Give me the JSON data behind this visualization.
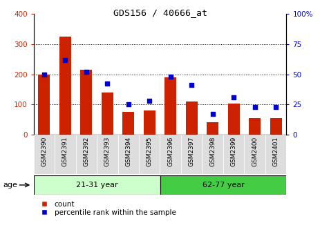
{
  "title": "GDS156 / 40666_at",
  "samples": [
    "GSM2390",
    "GSM2391",
    "GSM2392",
    "GSM2393",
    "GSM2394",
    "GSM2395",
    "GSM2396",
    "GSM2397",
    "GSM2398",
    "GSM2399",
    "GSM2400",
    "GSM2401"
  ],
  "counts": [
    200,
    325,
    215,
    140,
    75,
    80,
    190,
    110,
    40,
    103,
    55,
    55
  ],
  "percentiles": [
    50,
    62,
    52,
    42,
    25,
    28,
    48,
    41,
    17,
    31,
    23,
    23
  ],
  "groups": [
    {
      "label": "21-31 year",
      "start": 0,
      "end": 6
    },
    {
      "label": "62-77 year",
      "start": 6,
      "end": 12
    }
  ],
  "group_color_light": "#ccffcc",
  "group_color_dark": "#44cc44",
  "bar_color": "#CC2200",
  "dot_color": "#0000CC",
  "ylim_left": [
    0,
    400
  ],
  "ylim_right": [
    0,
    100
  ],
  "yticks_left": [
    0,
    100,
    200,
    300,
    400
  ],
  "yticks_right": [
    0,
    25,
    50,
    75,
    100
  ],
  "background_color": "#ffffff",
  "tick_color_left": "#CC2200",
  "tick_color_right": "#0000CC",
  "age_label": "age",
  "legend_count": "count",
  "legend_percentile": "percentile rank within the sample",
  "xticklabel_bg": "#dddddd"
}
